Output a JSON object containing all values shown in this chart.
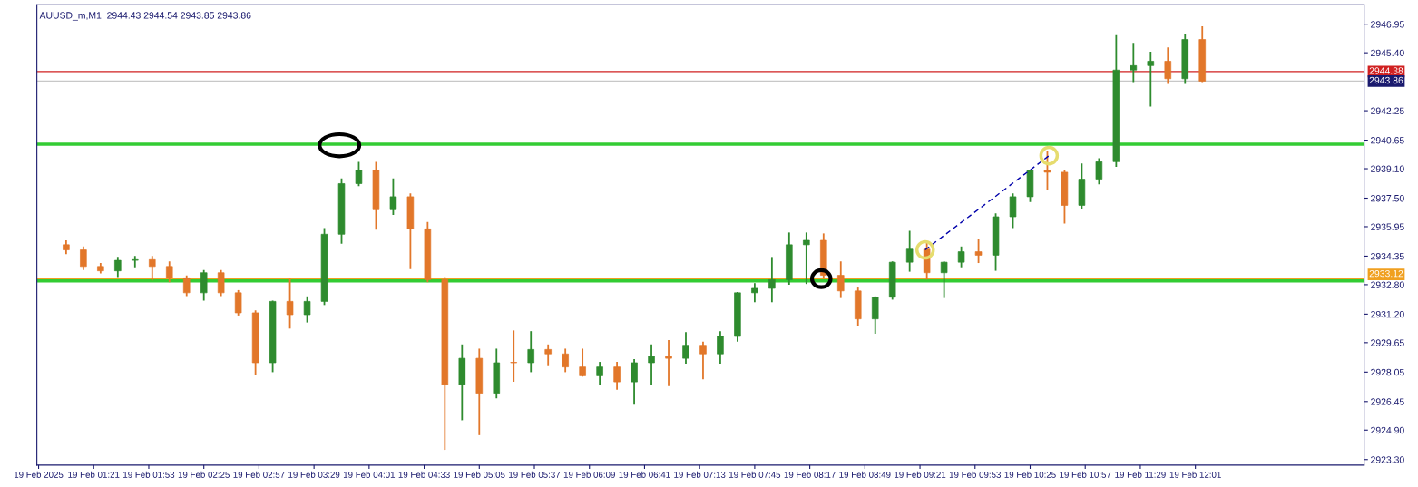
{
  "chart_data": {
    "type": "candlestick",
    "title": "AUUSD_m,M1  2944.43 2944.54 2943.85 2943.86",
    "x": [
      "2025-02-19T01:05",
      "2025-02-19T01:15",
      "2025-02-19T01:25",
      "2025-02-19T01:35",
      "2025-02-19T01:45",
      "2025-02-19T01:55",
      "2025-02-19T02:05",
      "2025-02-19T02:15",
      "2025-02-19T02:25",
      "2025-02-19T02:35",
      "2025-02-19T02:45",
      "2025-02-19T02:55",
      "2025-02-19T03:05",
      "2025-02-19T03:15",
      "2025-02-19T03:25",
      "2025-02-19T03:35",
      "2025-02-19T03:45",
      "2025-02-19T03:55",
      "2025-02-19T04:05",
      "2025-02-19T04:15",
      "2025-02-19T04:25",
      "2025-02-19T04:35",
      "2025-02-19T04:45",
      "2025-02-19T04:55",
      "2025-02-19T05:05",
      "2025-02-19T05:15",
      "2025-02-19T05:25",
      "2025-02-19T05:35",
      "2025-02-19T05:45",
      "2025-02-19T05:55",
      "2025-02-19T06:05",
      "2025-02-19T06:15",
      "2025-02-19T06:25",
      "2025-02-19T06:35",
      "2025-02-19T06:45",
      "2025-02-19T06:55",
      "2025-02-19T07:05",
      "2025-02-19T07:15",
      "2025-02-19T07:25",
      "2025-02-19T07:35",
      "2025-02-19T07:45",
      "2025-02-19T07:55",
      "2025-02-19T08:05",
      "2025-02-19T08:15",
      "2025-02-19T08:25",
      "2025-02-19T08:35",
      "2025-02-19T08:45",
      "2025-02-19T08:55",
      "2025-02-19T09:05",
      "2025-02-19T09:15",
      "2025-02-19T09:25",
      "2025-02-19T09:35",
      "2025-02-19T09:45",
      "2025-02-19T09:55",
      "2025-02-19T10:05",
      "2025-02-19T10:15",
      "2025-02-19T10:25",
      "2025-02-19T10:35",
      "2025-02-19T10:45",
      "2025-02-19T10:55",
      "2025-02-19T11:05",
      "2025-02-19T11:15",
      "2025-02-19T11:25",
      "2025-02-19T11:35",
      "2025-02-19T11:45",
      "2025-02-19T11:55",
      "2025-02-19T12:05"
    ],
    "ohlc": [
      [
        2934.97,
        2935.16,
        2934.5,
        2934.69
      ],
      [
        2934.69,
        2934.83,
        2933.64,
        2933.79
      ],
      [
        2933.79,
        2933.93,
        2933.45,
        2933.55
      ],
      [
        2933.55,
        2934.26,
        2933.26,
        2934.12
      ],
      [
        2934.12,
        2934.31,
        2933.79,
        2934.16
      ],
      [
        2934.16,
        2934.31,
        2933.07,
        2933.79
      ],
      [
        2933.79,
        2934.02,
        2932.98,
        2933.17
      ],
      [
        2933.17,
        2933.26,
        2932.22,
        2932.36
      ],
      [
        2932.36,
        2933.55,
        2931.98,
        2933.45
      ],
      [
        2933.45,
        2933.55,
        2932.22,
        2932.36
      ],
      [
        2932.36,
        2932.46,
        2931.17,
        2931.27
      ],
      [
        2931.27,
        2931.36,
        2927.95,
        2928.56
      ],
      [
        2928.56,
        2931.89,
        2928.09,
        2931.89
      ],
      [
        2931.89,
        2933.07,
        2930.46,
        2931.17
      ],
      [
        2931.17,
        2932.12,
        2930.79,
        2931.89
      ],
      [
        2931.89,
        2935.83,
        2931.74,
        2935.54
      ],
      [
        2935.54,
        2938.53,
        2935.07,
        2938.29
      ],
      [
        2938.29,
        2939.43,
        2938.2,
        2939.01
      ],
      [
        2939.01,
        2939.43,
        2935.83,
        2936.87
      ],
      [
        2936.87,
        2938.53,
        2936.63,
        2937.58
      ],
      [
        2937.58,
        2937.72,
        2933.69,
        2935.83
      ],
      [
        2935.83,
        2936.16,
        2932.98,
        2933.07
      ],
      [
        2933.07,
        2933.17,
        2923.87,
        2927.38
      ],
      [
        2927.38,
        2929.51,
        2925.48,
        2928.8
      ],
      [
        2928.8,
        2929.28,
        2924.67,
        2926.9
      ],
      [
        2926.9,
        2929.28,
        2926.67,
        2928.56
      ],
      [
        2928.56,
        2930.27,
        2927.57,
        2928.56
      ],
      [
        2928.56,
        2930.23,
        2928.09,
        2929.28
      ],
      [
        2929.28,
        2929.51,
        2928.42,
        2929.04
      ],
      [
        2929.04,
        2929.28,
        2928.09,
        2928.33
      ],
      [
        2928.33,
        2929.28,
        2927.85,
        2927.85
      ],
      [
        2927.85,
        2928.56,
        2927.38,
        2928.33
      ],
      [
        2928.33,
        2928.56,
        2927.14,
        2927.52
      ],
      [
        2927.52,
        2928.71,
        2926.33,
        2928.56
      ],
      [
        2928.56,
        2929.51,
        2927.38,
        2928.9
      ],
      [
        2928.9,
        2929.75,
        2927.33,
        2928.8
      ],
      [
        2928.8,
        2930.18,
        2928.56,
        2929.51
      ],
      [
        2929.51,
        2929.66,
        2927.71,
        2929.04
      ],
      [
        2929.04,
        2930.23,
        2928.56,
        2929.99
      ],
      [
        2929.99,
        2932.36,
        2929.75,
        2932.36
      ],
      [
        2932.36,
        2932.84,
        2931.89,
        2932.6
      ],
      [
        2932.6,
        2934.26,
        2931.89,
        2933.07
      ],
      [
        2933.07,
        2935.59,
        2932.84,
        2934.97
      ],
      [
        2934.97,
        2935.59,
        2932.88,
        2935.21
      ],
      [
        2935.21,
        2935.54,
        2933.17,
        2933.31
      ],
      [
        2933.31,
        2934.02,
        2932.12,
        2932.46
      ],
      [
        2932.46,
        2932.6,
        2930.61,
        2930.94
      ],
      [
        2930.94,
        2932.12,
        2930.18,
        2932.12
      ],
      [
        2932.12,
        2934.02,
        2932.03,
        2934.02
      ],
      [
        2934.02,
        2935.68,
        2933.55,
        2934.73
      ],
      [
        2934.73,
        2935.07,
        2933.12,
        2933.45
      ],
      [
        2933.45,
        2934.02,
        2932.12,
        2934.02
      ],
      [
        2934.02,
        2934.83,
        2933.79,
        2934.59
      ],
      [
        2934.59,
        2935.26,
        2934.02,
        2934.4
      ],
      [
        2934.4,
        2936.63,
        2933.6,
        2936.49
      ],
      [
        2936.49,
        2937.72,
        2935.92,
        2937.58
      ],
      [
        2937.58,
        2939.01,
        2937.34,
        2939.01
      ],
      [
        2939.01,
        2940.0,
        2937.96,
        2938.91
      ],
      [
        2938.91,
        2939.01,
        2936.16,
        2937.11
      ],
      [
        2937.11,
        2939.34,
        2936.97,
        2938.53
      ],
      [
        2938.53,
        2939.62,
        2938.29,
        2939.48
      ],
      [
        2939.48,
        2946.31,
        2939.24,
        2944.46
      ],
      [
        2944.46,
        2945.89,
        2943.85,
        2944.7
      ],
      [
        2944.7,
        2945.41,
        2942.52,
        2944.94
      ],
      [
        2944.94,
        2945.65,
        2943.75,
        2943.99
      ],
      [
        2943.99,
        2946.36,
        2943.75,
        2946.12
      ],
      [
        2946.12,
        2946.79,
        2943.85,
        2943.86
      ]
    ],
    "colors": [
      "#e2772a",
      "#e2772a",
      "#e2772a",
      "#2e8b2e",
      "#2e8b2e",
      "#e2772a",
      "#e2772a",
      "#e2772a",
      "#2e8b2e",
      "#e2772a",
      "#e2772a",
      "#e2772a",
      "#2e8b2e",
      "#e2772a",
      "#2e8b2e",
      "#2e8b2e",
      "#2e8b2e",
      "#2e8b2e",
      "#e2772a",
      "#2e8b2e",
      "#e2772a",
      "#e2772a",
      "#e2772a",
      "#2e8b2e",
      "#e2772a",
      "#2e8b2e",
      "#e2772a",
      "#2e8b2e",
      "#e2772a",
      "#e2772a",
      "#e2772a",
      "#2e8b2e",
      "#e2772a",
      "#2e8b2e",
      "#2e8b2e",
      "#e2772a",
      "#2e8b2e",
      "#e2772a",
      "#2e8b2e",
      "#2e8b2e",
      "#2e8b2e",
      "#2e8b2e",
      "#2e8b2e",
      "#2e8b2e",
      "#e2772a",
      "#e2772a",
      "#e2772a",
      "#2e8b2e",
      "#2e8b2e",
      "#2e8b2e",
      "#e2772a",
      "#2e8b2e",
      "#2e8b2e",
      "#e2772a",
      "#2e8b2e",
      "#2e8b2e",
      "#2e8b2e",
      "#e2772a",
      "#e2772a",
      "#2e8b2e",
      "#2e8b2e",
      "#2e8b2e",
      "#2e8b2e",
      "#2e8b2e",
      "#e2772a",
      "#2e8b2e",
      "#e2772a"
    ],
    "series": [
      {
        "type": "line",
        "x": [
          "2025-02-19T09:24",
          "2025-02-19T10:36"
        ],
        "values": [
          2934.69,
          2939.81
        ],
        "color": "#0000aa",
        "line_style": "dashed",
        "marker": "circle"
      }
    ],
    "ref_lines": [
      {
        "axis": "y",
        "value": 2944.38,
        "label": "2944.38",
        "color": "#d02020"
      },
      {
        "axis": "y",
        "value": 2943.86,
        "label": "2943.86",
        "color": "#c8c8c8"
      },
      {
        "axis": "y",
        "value": 2940.43,
        "color": "#33cc33"
      },
      {
        "axis": "y",
        "value": 2933.12,
        "label": "2933.12",
        "color": "#f0a020"
      },
      {
        "axis": "y",
        "value": 2933.0,
        "color": "#33cc33"
      }
    ],
    "xlim": [
      "2025-02-19T00:48",
      "2025-02-19T13:39"
    ],
    "ylim": [
      2923.0,
      2948.0
    ],
    "xticks": [
      {
        "value": "2025-02-19T00:49",
        "label": "19 Feb 2025"
      },
      {
        "value": "2025-02-19T01:21",
        "label": "19 Feb 01:21"
      },
      {
        "value": "2025-02-19T01:53",
        "label": "19 Feb 01:53"
      },
      {
        "value": "2025-02-19T02:25",
        "label": "19 Feb 02:25"
      },
      {
        "value": "2025-02-19T02:57",
        "label": "19 Feb 02:57"
      },
      {
        "value": "2025-02-19T03:29",
        "label": "19 Feb 03:29"
      },
      {
        "value": "2025-02-19T04:01",
        "label": "19 Feb 04:01"
      },
      {
        "value": "2025-02-19T04:33",
        "label": "19 Feb 04:33"
      },
      {
        "value": "2025-02-19T05:05",
        "label": "19 Feb 05:05"
      },
      {
        "value": "2025-02-19T05:37",
        "label": "19 Feb 05:37"
      },
      {
        "value": "2025-02-19T06:09",
        "label": "19 Feb 06:09"
      },
      {
        "value": "2025-02-19T06:41",
        "label": "19 Feb 06:41"
      },
      {
        "value": "2025-02-19T07:13",
        "label": "19 Feb 07:13"
      },
      {
        "value": "2025-02-19T07:45",
        "label": "19 Feb 07:45"
      },
      {
        "value": "2025-02-19T08:17",
        "label": "19 Feb 08:17"
      },
      {
        "value": "2025-02-19T08:49",
        "label": "19 Feb 08:49"
      },
      {
        "value": "2025-02-19T09:21",
        "label": "19 Feb 09:21"
      },
      {
        "value": "2025-02-19T09:53",
        "label": "19 Feb 09:53"
      },
      {
        "value": "2025-02-19T10:25",
        "label": "19 Feb 10:25"
      },
      {
        "value": "2025-02-19T10:57",
        "label": "19 Feb 10:57"
      },
      {
        "value": "2025-02-19T11:29",
        "label": "19 Feb 11:29"
      },
      {
        "value": "2025-02-19T12:01",
        "label": "19 Feb 12:01"
      }
    ],
    "yticks": [
      {
        "value": 2923.3,
        "label": "2923.30"
      },
      {
        "value": 2924.9,
        "label": "2924.90"
      },
      {
        "value": 2926.45,
        "label": "2926.45"
      },
      {
        "value": 2928.05,
        "label": "2928.05"
      },
      {
        "value": 2929.65,
        "label": "2929.65"
      },
      {
        "value": 2931.2,
        "label": "2931.20"
      },
      {
        "value": 2932.8,
        "label": "2932.80"
      },
      {
        "value": 2934.35,
        "label": "2934.35"
      },
      {
        "value": 2935.95,
        "label": "2935.95"
      },
      {
        "value": 2937.5,
        "label": "2937.50"
      },
      {
        "value": 2939.1,
        "label": "2939.10"
      },
      {
        "value": 2940.65,
        "label": "2940.65"
      },
      {
        "value": 2942.25,
        "label": "2942.25"
      },
      {
        "value": 2945.4,
        "label": "2945.40"
      },
      {
        "value": 2946.95,
        "label": "2946.95"
      }
    ],
    "grid": false,
    "legend": false
  }
}
